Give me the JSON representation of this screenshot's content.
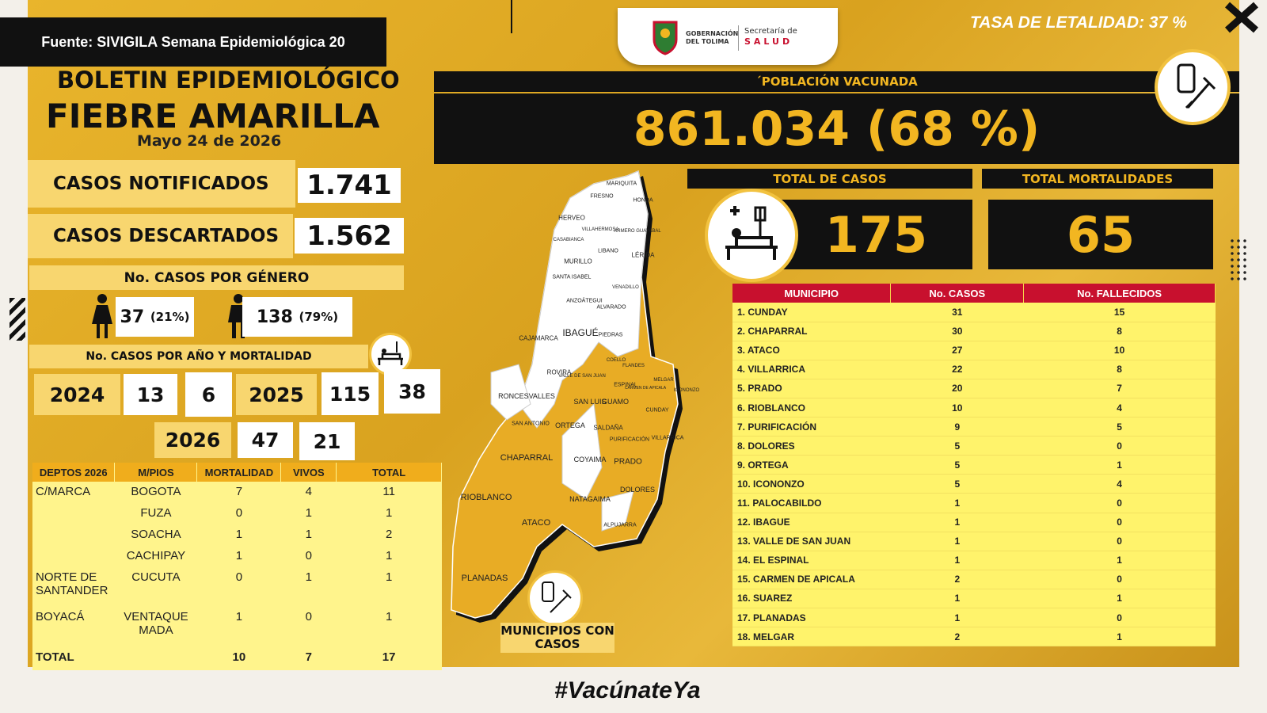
{
  "source": "Fuente: SIVIGILA Semana Epidemiológica 20",
  "fatality_rate": "TASA DE LETALIDAD: 37 %",
  "logo": {
    "org1": "GOBERNACIÓN",
    "org2": "DEL TOLIMA",
    "org3": "Secretaría de",
    "org4": "SALUD"
  },
  "header": {
    "line1": "BOLETIN EPIDEMIOLÓGICO",
    "title": "FIEBRE AMARILLA",
    "date": "Mayo 24 de 2026"
  },
  "vaccinated": {
    "label": "´POBLACIÓN VACUNADA",
    "value": "861.034 (68 %)"
  },
  "notified": {
    "label": "CASOS NOTIFICADOS",
    "value": "1.741"
  },
  "discarded": {
    "label": "CASOS DESCARTADOS",
    "value": "1.562"
  },
  "gender": {
    "title": "No. CASOS POR GÉNERO",
    "female": "37",
    "female_pct": "(21%)",
    "male": "138",
    "male_pct": "(79%)"
  },
  "by_year": {
    "title": "No. CASOS POR AÑO Y MORTALIDAD",
    "rows": [
      {
        "year": "2024",
        "cases": "13",
        "deaths": "6"
      },
      {
        "year": "2025",
        "cases": "115",
        "deaths": "38"
      },
      {
        "year": "2026",
        "cases": "47",
        "deaths": "21"
      }
    ]
  },
  "depts_table": {
    "header": [
      "DEPTOS 2026",
      "M/PIOS",
      "MORTALIDAD",
      "VIVOS",
      "TOTAL"
    ],
    "groups": [
      {
        "dept": "C/MARCA",
        "rows": [
          [
            "BOGOTA",
            7,
            4,
            11
          ],
          [
            "FUZA",
            0,
            1,
            1
          ],
          [
            "SOACHA",
            1,
            1,
            2
          ],
          [
            "CACHIPAY",
            1,
            0,
            1
          ]
        ]
      },
      {
        "dept": "NORTE DE SANTANDER",
        "rows": [
          [
            "CUCUTA",
            0,
            1,
            1
          ]
        ]
      },
      {
        "dept": "BOYACÁ",
        "rows": [
          [
            "VENTAQUE MADA",
            1,
            0,
            1
          ]
        ]
      }
    ],
    "total": {
      "label": "TOTAL",
      "values": [
        10,
        7,
        17
      ]
    }
  },
  "totals": {
    "cases_label": "TOTAL DE CASOS",
    "cases": "175",
    "deaths_label": "TOTAL MORTALIDADES",
    "deaths": "65"
  },
  "municipios_table": {
    "header": [
      "MUNICIPIO",
      "No. CASOS",
      "No. FALLECIDOS"
    ],
    "rows": [
      [
        "1. CUNDAY",
        31,
        15
      ],
      [
        "2. CHAPARRAL",
        30,
        8
      ],
      [
        "3. ATACO",
        27,
        10
      ],
      [
        "4. VILLARRICA",
        22,
        8
      ],
      [
        "5. PRADO",
        20,
        7
      ],
      [
        "6. RIOBLANCO",
        10,
        4
      ],
      [
        "7. PURIFICACIÓN",
        9,
        5
      ],
      [
        "8. DOLORES",
        5,
        0
      ],
      [
        "9. ORTEGA",
        5,
        1
      ],
      [
        "10. ICONONZO",
        5,
        4
      ],
      [
        "11. PALOCABILDO",
        1,
        0
      ],
      [
        "12. IBAGUE",
        1,
        0
      ],
      [
        "13. VALLE DE SAN JUAN",
        1,
        0
      ],
      [
        "14. EL ESPINAL",
        1,
        1
      ],
      [
        "15. CARMEN DE APICALA",
        2,
        0
      ],
      [
        "16. SUAREZ",
        1,
        1
      ],
      [
        "17. PLANADAS",
        1,
        0
      ],
      [
        "18. MELGAR",
        2,
        1
      ]
    ]
  },
  "map": {
    "caption": "MUNICIPIOS CON CASOS",
    "labels": [
      "MARIQUITA",
      "FRESNO",
      "HONDA",
      "HERVEO",
      "VILLAHERMOSA",
      "ARMERO GUAYABAL",
      "CASABIANCA",
      "LIBANO",
      "LÉRIDA",
      "MURILLO",
      "SANTA ISABEL",
      "VENADILLO",
      "ANZOÁTEGUI",
      "ALVARADO",
      "CAJAMARCA",
      "IBAGUÉ",
      "PIEDRAS",
      "COELLO",
      "FLANDES",
      "ROVIRA",
      "VALLE DE SAN JUAN",
      "ESPINAL",
      "CARMEN DE APICALA",
      "MELGAR",
      "ICONONZO",
      "RONCESVALLES",
      "SAN LUIS",
      "GUAMO",
      "CUNDAY",
      "SAN ANTONIO",
      "ORTEGA",
      "SALDAÑA",
      "PURIFICACIÓN",
      "VILLARRICA",
      "CHAPARRAL",
      "COYAIMA",
      "PRADO",
      "DOLORES",
      "NATAGAIMA",
      "RIOBLANCO",
      "ATACO",
      "ALPUJARRA",
      "PLANADAS"
    ]
  },
  "hashtag": "#VacúnateYa"
}
